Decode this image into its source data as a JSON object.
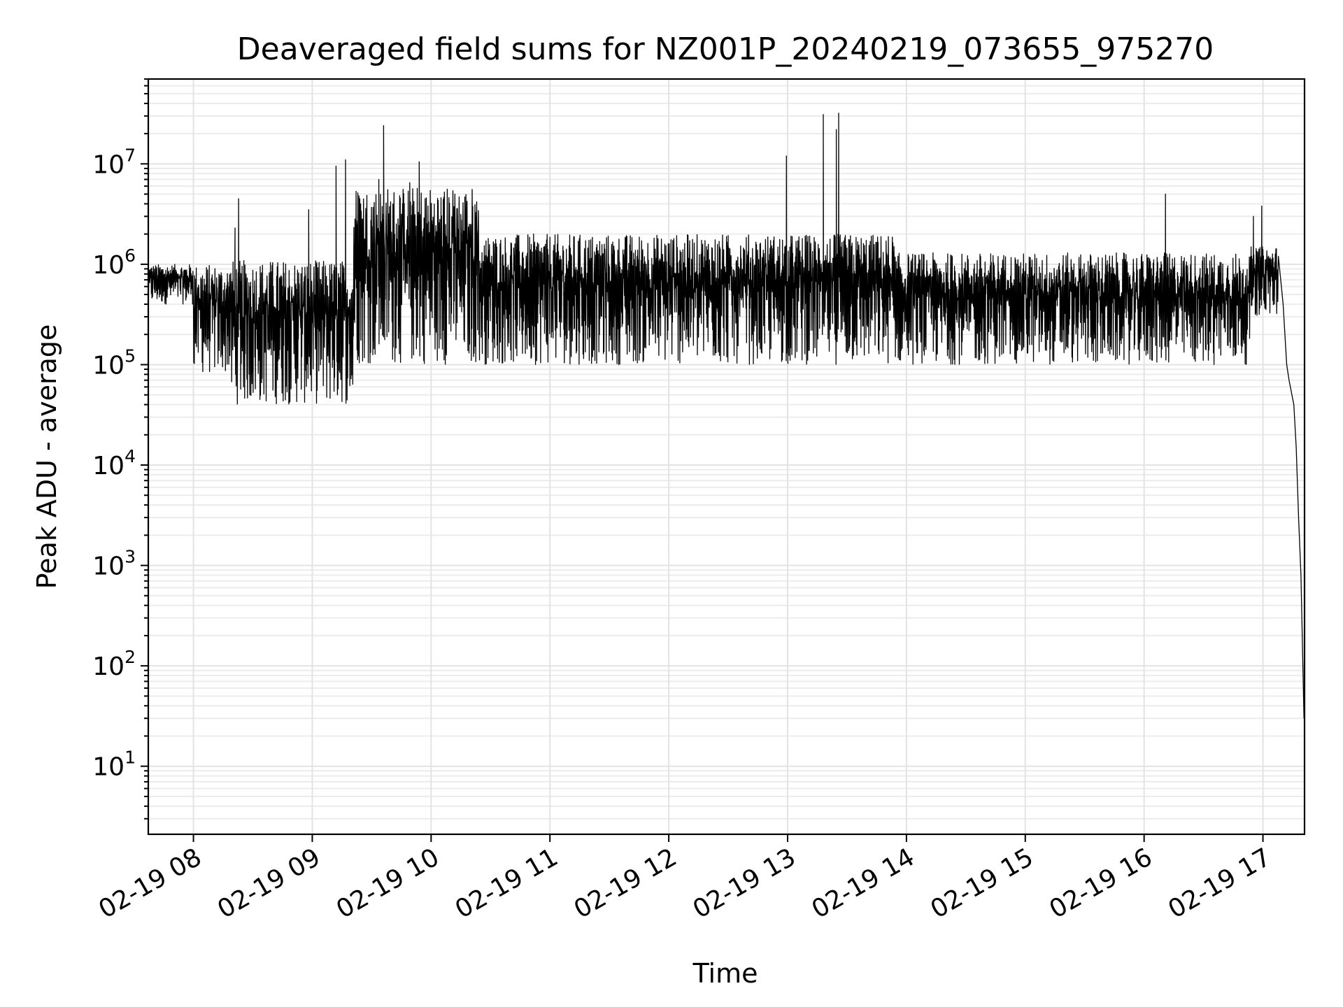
{
  "chart_data": {
    "type": "line",
    "title": "Deaveraged field sums for NZ001P_20240219_073655_975270",
    "xlabel": "Time",
    "ylabel": "Peak ADU - average",
    "yscale": "log",
    "grid": true,
    "line_color": "#000000",
    "x_unit": "hour of day 2024-02-19",
    "xlim": [
      7.62,
      17.35
    ],
    "ylim": [
      2.1,
      70000000
    ],
    "x_ticks": [
      8,
      9,
      10,
      11,
      12,
      13,
      14,
      15,
      16,
      17
    ],
    "x_tick_labels": [
      "02-19 08",
      "02-19 09",
      "02-19 10",
      "02-19 11",
      "02-19 12",
      "02-19 13",
      "02-19 14",
      "02-19 15",
      "02-19 16",
      "02-19 17"
    ],
    "y_ticks": [
      {
        "value": 10,
        "base": "10",
        "exp": "1"
      },
      {
        "value": 100,
        "base": "10",
        "exp": "2"
      },
      {
        "value": 1000,
        "base": "10",
        "exp": "3"
      },
      {
        "value": 10000,
        "base": "10",
        "exp": "4"
      },
      {
        "value": 100000,
        "base": "10",
        "exp": "5"
      },
      {
        "value": 1000000,
        "base": "10",
        "exp": "6"
      },
      {
        "value": 10000000,
        "base": "10",
        "exp": "7"
      }
    ],
    "series": [
      {
        "segments": [
          {
            "x": [
              7.62,
              8.0
            ],
            "low": 400000,
            "high": 1000000
          },
          {
            "x": [
              8.0,
              8.3
            ],
            "low": 80000,
            "high": 1000000
          },
          {
            "x": [
              8.3,
              9.35
            ],
            "low": 40000,
            "high": 1100000
          },
          {
            "x": [
              9.35,
              10.4
            ],
            "low": 100000,
            "high": 6000000
          },
          {
            "x": [
              10.4,
              13.9
            ],
            "low": 100000,
            "high": 2000000
          },
          {
            "x": [
              13.9,
              16.9
            ],
            "low": 100000,
            "high": 1300000
          },
          {
            "x": [
              16.9,
              17.13
            ],
            "low": 300000,
            "high": 1500000
          }
        ],
        "spikes": [
          {
            "x": 8.38,
            "y": 4500000
          },
          {
            "x": 8.35,
            "y": 2300000
          },
          {
            "x": 8.97,
            "y": 3500000
          },
          {
            "x": 9.2,
            "y": 9500000
          },
          {
            "x": 9.28,
            "y": 11000000
          },
          {
            "x": 9.4,
            "y": 4500000
          },
          {
            "x": 9.56,
            "y": 7000000
          },
          {
            "x": 9.6,
            "y": 24000000
          },
          {
            "x": 9.82,
            "y": 6500000
          },
          {
            "x": 9.9,
            "y": 10500000
          },
          {
            "x": 10.2,
            "y": 5000000
          },
          {
            "x": 12.99,
            "y": 12000000
          },
          {
            "x": 13.3,
            "y": 31000000
          },
          {
            "x": 13.41,
            "y": 22000000
          },
          {
            "x": 13.43,
            "y": 32000000
          },
          {
            "x": 16.18,
            "y": 5000000
          },
          {
            "x": 16.92,
            "y": 3000000
          },
          {
            "x": 16.99,
            "y": 3800000
          }
        ],
        "tail": [
          {
            "x": 17.13,
            "y": 1200000
          },
          {
            "x": 17.17,
            "y": 400000
          },
          {
            "x": 17.2,
            "y": 100000
          },
          {
            "x": 17.22,
            "y": 70000
          },
          {
            "x": 17.26,
            "y": 40000
          },
          {
            "x": 17.28,
            "y": 15000
          },
          {
            "x": 17.3,
            "y": 3000
          },
          {
            "x": 17.32,
            "y": 800
          },
          {
            "x": 17.345,
            "y": 30
          }
        ]
      }
    ]
  }
}
